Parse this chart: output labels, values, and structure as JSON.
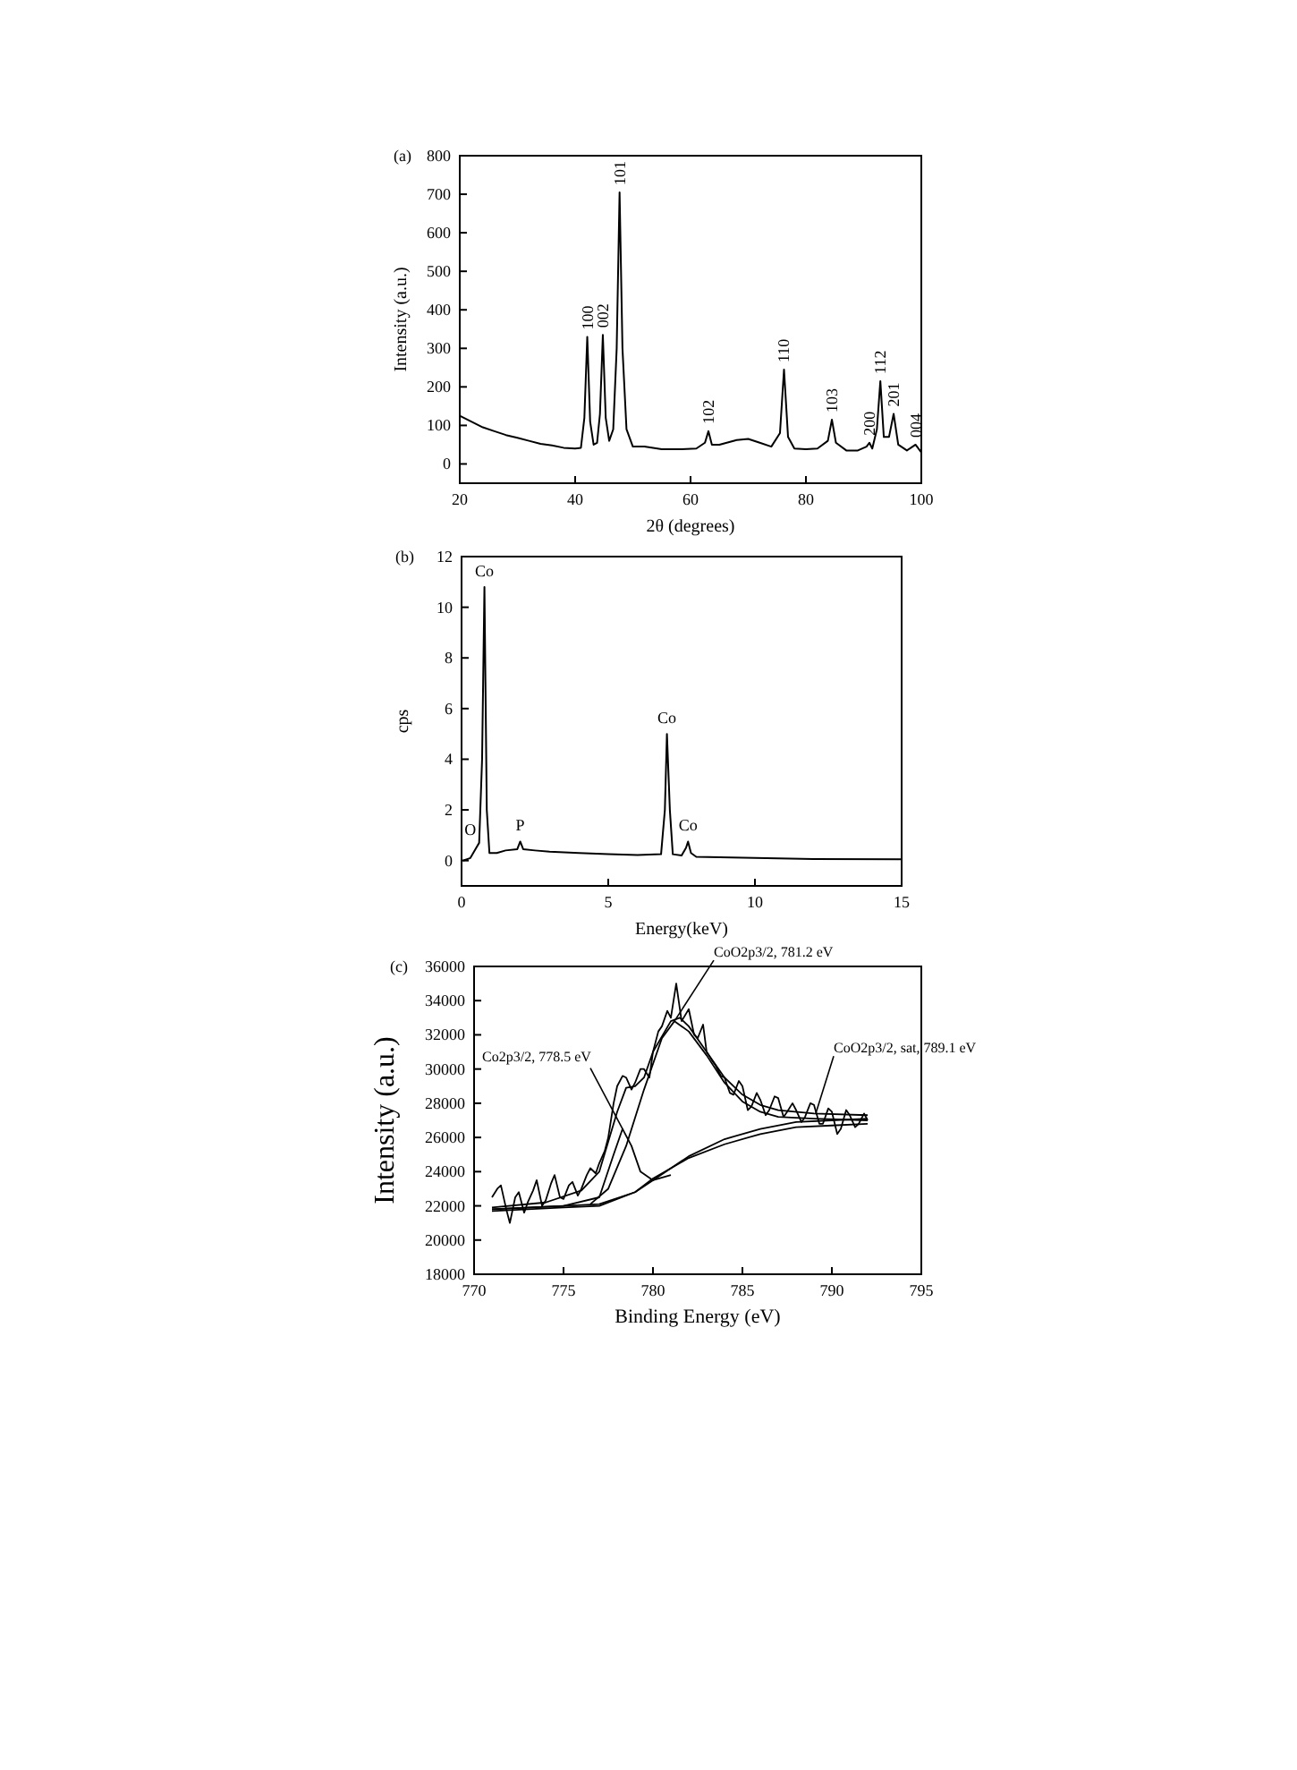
{
  "chart_data": [
    {
      "type": "line",
      "title": "(a)",
      "xlabel": "2θ (degrees)",
      "ylabel": "Intensity (a.u.)",
      "xlim": [
        20,
        100
      ],
      "ylim": [
        -50,
        800
      ],
      "xticks": [
        20,
        40,
        60,
        80,
        100
      ],
      "yticks": [
        0,
        100,
        200,
        300,
        400,
        500,
        600,
        700,
        800
      ],
      "series": [
        {
          "color": "#000000",
          "x": [
            20,
            22,
            24,
            26,
            28,
            30,
            32,
            34,
            36,
            38,
            40,
            41,
            41.6,
            42.1,
            42.6,
            43.2,
            43.8,
            44.3,
            44.8,
            45.3,
            45.9,
            46.6,
            47.2,
            47.7,
            48.2,
            48.9,
            50,
            52,
            55,
            58,
            61,
            62.5,
            63.1,
            63.7,
            65,
            68,
            70,
            72,
            74,
            75.5,
            76.2,
            76.9,
            78,
            80,
            82,
            83.8,
            84.5,
            85.2,
            87,
            89,
            90.5,
            91,
            91.5,
            92.3,
            92.9,
            93.5,
            94.4,
            95.2,
            96,
            97.5,
            99,
            100
          ],
          "values": [
            125,
            110,
            95,
            85,
            75,
            68,
            60,
            52,
            48,
            42,
            40,
            42,
            120,
            330,
            110,
            50,
            55,
            130,
            335,
            120,
            60,
            90,
            300,
            705,
            300,
            90,
            45,
            45,
            38,
            38,
            40,
            55,
            85,
            50,
            50,
            62,
            65,
            55,
            45,
            80,
            245,
            70,
            40,
            38,
            40,
            60,
            115,
            55,
            35,
            35,
            45,
            55,
            40,
            90,
            215,
            70,
            70,
            130,
            50,
            35,
            50,
            30
          ]
        }
      ],
      "annotations": [
        {
          "text": "100",
          "x": 42.1,
          "y": 330
        },
        {
          "text": "002",
          "x": 44.8,
          "y": 335
        },
        {
          "text": "101",
          "x": 47.7,
          "y": 705
        },
        {
          "text": "102",
          "x": 63.1,
          "y": 85
        },
        {
          "text": "110",
          "x": 76.2,
          "y": 245
        },
        {
          "text": "103",
          "x": 84.5,
          "y": 115
        },
        {
          "text": "200",
          "x": 91,
          "y": 55
        },
        {
          "text": "112",
          "x": 92.9,
          "y": 215
        },
        {
          "text": "201",
          "x": 95.2,
          "y": 130
        },
        {
          "text": "004",
          "x": 99,
          "y": 50
        }
      ]
    },
    {
      "type": "line",
      "title": "(b)",
      "xlabel": "Energy(keV)",
      "ylabel": "cps",
      "xlim": [
        0,
        15
      ],
      "ylim": [
        -1,
        12
      ],
      "xticks": [
        0,
        5,
        10,
        15
      ],
      "yticks": [
        0,
        2,
        4,
        6,
        8,
        10,
        12
      ],
      "series": [
        {
          "color": "#000000",
          "x": [
            0.05,
            0.3,
            0.5,
            0.6,
            0.7,
            0.78,
            0.86,
            0.95,
            1.2,
            1.5,
            1.9,
            2.0,
            2.1,
            2.5,
            3,
            4,
            5,
            6,
            6.8,
            6.93,
            7.0,
            7.1,
            7.2,
            7.5,
            7.65,
            7.72,
            7.82,
            8,
            10,
            12,
            15
          ],
          "values": [
            0,
            0.1,
            0.5,
            0.7,
            4,
            10.8,
            2,
            0.3,
            0.3,
            0.4,
            0.45,
            0.75,
            0.45,
            0.4,
            0.35,
            0.3,
            0.25,
            0.22,
            0.25,
            2,
            5.0,
            2,
            0.25,
            0.2,
            0.5,
            0.75,
            0.3,
            0.15,
            0.1,
            0.06,
            0.05
          ]
        }
      ],
      "annotations": [
        {
          "text": "O",
          "x": 0.3,
          "y": 0.6
        },
        {
          "text": "Co",
          "x": 0.78,
          "y": 10.8
        },
        {
          "text": "P",
          "x": 2.0,
          "y": 0.75
        },
        {
          "text": "Co",
          "x": 7.0,
          "y": 5.0
        },
        {
          "text": "Co",
          "x": 7.72,
          "y": 0.75
        }
      ]
    },
    {
      "type": "line",
      "title": "(c)",
      "xlabel": "Binding Energy (eV)",
      "ylabel": "Intensity (a.u.)",
      "xlim": [
        770,
        795
      ],
      "ylim": [
        18000,
        36000
      ],
      "xticks": [
        770,
        775,
        780,
        785,
        790,
        795
      ],
      "yticks": [
        18000,
        20000,
        22000,
        24000,
        26000,
        28000,
        30000,
        32000,
        34000,
        36000
      ],
      "series": [
        {
          "color": "#000000",
          "x": [
            771,
            771.3,
            771.5,
            771.8,
            772,
            772.3,
            772.5,
            772.8,
            773,
            773.3,
            773.5,
            773.8,
            774,
            774.3,
            774.5,
            774.8,
            775,
            775.3,
            775.5,
            775.8,
            776,
            776.3,
            776.5,
            776.8,
            777,
            777.3,
            777.5,
            777.8,
            778,
            778.3,
            778.5,
            778.8,
            779,
            779.3,
            779.5,
            779.8,
            780,
            780.3,
            780.5,
            780.8,
            781,
            781.3,
            781.6,
            782,
            782.3,
            782.5,
            782.8,
            783,
            783.3,
            783.5,
            783.8,
            784,
            784.3,
            784.5,
            784.8,
            785,
            785.3,
            785.5,
            785.8,
            786,
            786.3,
            786.5,
            786.8,
            787,
            787.3,
            787.5,
            787.8,
            788,
            788.3,
            788.5,
            788.8,
            789,
            789.3,
            789.5,
            789.8,
            790,
            790.3,
            790.5,
            790.8,
            791,
            791.3,
            791.5,
            791.8,
            792
          ],
          "values": [
            22500,
            23000,
            23200,
            21800,
            21000,
            22500,
            22800,
            21600,
            22200,
            22900,
            23500,
            22000,
            22300,
            23300,
            23800,
            22500,
            22400,
            23200,
            23400,
            22600,
            23000,
            23800,
            24200,
            23900,
            24500,
            25200,
            26000,
            28000,
            29000,
            29600,
            29500,
            28800,
            29200,
            30000,
            30000,
            29500,
            31000,
            32200,
            32500,
            33400,
            33000,
            35000,
            32800,
            33500,
            32000,
            31800,
            32600,
            31000,
            30500,
            30200,
            29600,
            29500,
            28600,
            28500,
            29300,
            29000,
            27600,
            27800,
            28600,
            28200,
            27300,
            27600,
            28400,
            28300,
            27200,
            27500,
            28000,
            27600,
            26900,
            27200,
            28000,
            27900,
            26800,
            26800,
            27700,
            27500,
            26200,
            26500,
            27600,
            27300,
            26600,
            26800,
            27400,
            27000
          ]
        },
        {
          "color": "#000000",
          "x": [
            771,
            774,
            776,
            777,
            778,
            778.5,
            779,
            779.5,
            780,
            781,
            781.5,
            782,
            783,
            784,
            785,
            786,
            787,
            789,
            792
          ],
          "values": [
            21900,
            22200,
            22900,
            24000,
            27500,
            28900,
            29000,
            29500,
            31000,
            32800,
            33000,
            32500,
            31000,
            29500,
            28500,
            27900,
            27600,
            27400,
            27300
          ]
        },
        {
          "color": "#000000",
          "x": [
            771,
            775,
            777,
            777.8,
            778.3,
            778.8,
            779.3,
            780,
            781
          ],
          "values": [
            21800,
            22000,
            22500,
            25000,
            26500,
            25500,
            24000,
            23500,
            23800
          ]
        },
        {
          "color": "#000000",
          "x": [
            776.5,
            777.5,
            778.5,
            779.5,
            780.5,
            781.2,
            782,
            783,
            784,
            785,
            786,
            787,
            789,
            792
          ],
          "values": [
            22100,
            23000,
            25500,
            28800,
            31800,
            32800,
            32200,
            30800,
            29200,
            28100,
            27500,
            27200,
            27100,
            27000
          ]
        },
        {
          "color": "#000000",
          "x": [
            771,
            775,
            777,
            779,
            780,
            782,
            784,
            786,
            788,
            790,
            792
          ],
          "values": [
            21700,
            21900,
            22000,
            22800,
            23600,
            24800,
            25600,
            26200,
            26600,
            26700,
            26800
          ]
        },
        {
          "color": "#000000",
          "x": [
            771,
            775,
            777,
            779,
            780,
            782,
            784,
            786,
            788,
            790,
            792
          ],
          "values": [
            21800,
            22000,
            22100,
            22800,
            23500,
            24900,
            25900,
            26500,
            26900,
            27000,
            27100
          ]
        }
      ],
      "annotations": [
        {
          "text": "Co2p3/2, 778.5 eV",
          "x": 778.3,
          "y": 26500
        },
        {
          "text": "CoO2p3/2, 781.2 eV",
          "x": 781.2,
          "y": 32800
        },
        {
          "text": "CoO2p3/2, sat, 789.1 eV",
          "x": 789.1,
          "y": 27400
        }
      ]
    }
  ]
}
